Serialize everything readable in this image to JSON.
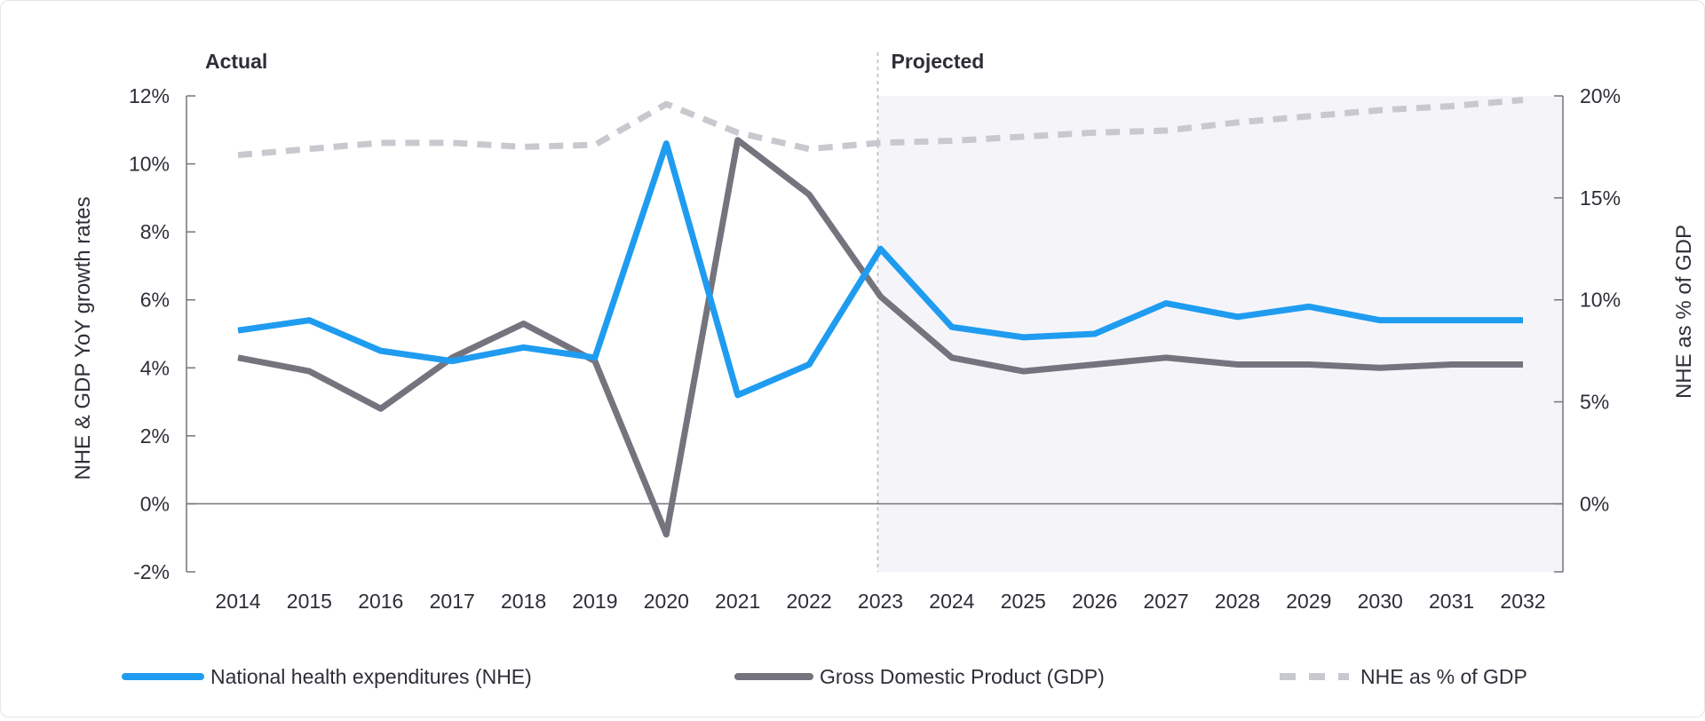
{
  "chart_data": {
    "type": "line",
    "title": "",
    "period_labels": {
      "actual": "Actual",
      "projected": "Projected"
    },
    "projected_start": "2023",
    "ylabel": "NHE & GDP YoY growth rates",
    "y2label": "NHE as % of GDP",
    "ylim": [
      -2,
      12
    ],
    "y_ticks": [
      "-2%",
      "0%",
      "2%",
      "4%",
      "6%",
      "8%",
      "10%",
      "12%"
    ],
    "y_tick_values": [
      -2,
      0,
      2,
      4,
      6,
      8,
      10,
      12
    ],
    "y2lim": [
      0,
      20
    ],
    "y2_ticks": [
      "0%",
      "5%",
      "10%",
      "15%",
      "20%"
    ],
    "y2_tick_values": [
      0,
      5,
      10,
      15,
      20
    ],
    "categories": [
      "2014",
      "2015",
      "2016",
      "2017",
      "2018",
      "2019",
      "2020",
      "2021",
      "2022",
      "2023",
      "2024",
      "2025",
      "2026",
      "2027",
      "2028",
      "2029",
      "2030",
      "2031",
      "2032"
    ],
    "series": [
      {
        "name": "National health expenditures (NHE)",
        "axis": "left",
        "color": "#1f9cf0",
        "style": "solid",
        "values": [
          5.1,
          5.4,
          4.5,
          4.2,
          4.6,
          4.3,
          10.6,
          3.2,
          4.1,
          7.5,
          5.2,
          4.9,
          5.0,
          5.9,
          5.5,
          5.8,
          5.4,
          5.4,
          5.4
        ]
      },
      {
        "name": "Gross Domestic Product (GDP)",
        "axis": "left",
        "color": "#75747e",
        "style": "solid",
        "values": [
          4.3,
          3.9,
          2.8,
          4.3,
          5.3,
          4.2,
          -0.9,
          10.7,
          9.1,
          6.1,
          4.3,
          3.9,
          4.1,
          4.3,
          4.1,
          4.1,
          4.0,
          4.1,
          4.1
        ]
      },
      {
        "name": "NHE as % of GDP",
        "axis": "right",
        "color": "#c8c8cf",
        "style": "dashed",
        "values": [
          17.1,
          17.4,
          17.7,
          17.7,
          17.5,
          17.6,
          19.6,
          18.2,
          17.4,
          17.7,
          17.8,
          18.0,
          18.2,
          18.3,
          18.7,
          19.0,
          19.3,
          19.5,
          19.8
        ]
      }
    ],
    "legend_position": "bottom",
    "grid": false,
    "projected_shading_color": "#f5f5f9"
  }
}
